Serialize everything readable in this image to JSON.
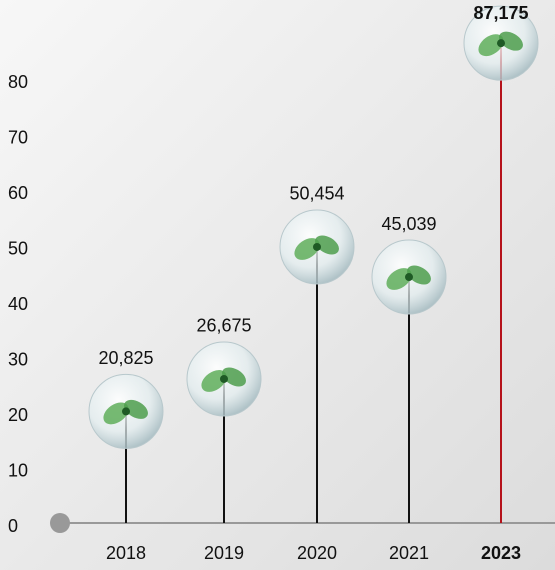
{
  "chart_data": {
    "type": "lollipop",
    "categories": [
      "2018",
      "2019",
      "2020",
      "2021",
      "2023"
    ],
    "values": [
      20.825,
      26.675,
      50.454,
      45.039,
      87.175
    ],
    "value_labels": [
      "20,825",
      "26,675",
      "50,454",
      "45,039",
      "87,175"
    ],
    "color": "#111111",
    "colors": [
      "#111111",
      "#111111",
      "#111111",
      "#111111",
      "#b5121b"
    ],
    "ylim": [
      0,
      90
    ],
    "yticks": [
      0,
      10,
      20,
      30,
      40,
      50,
      60,
      70,
      80
    ],
    "grid": false
  }
}
